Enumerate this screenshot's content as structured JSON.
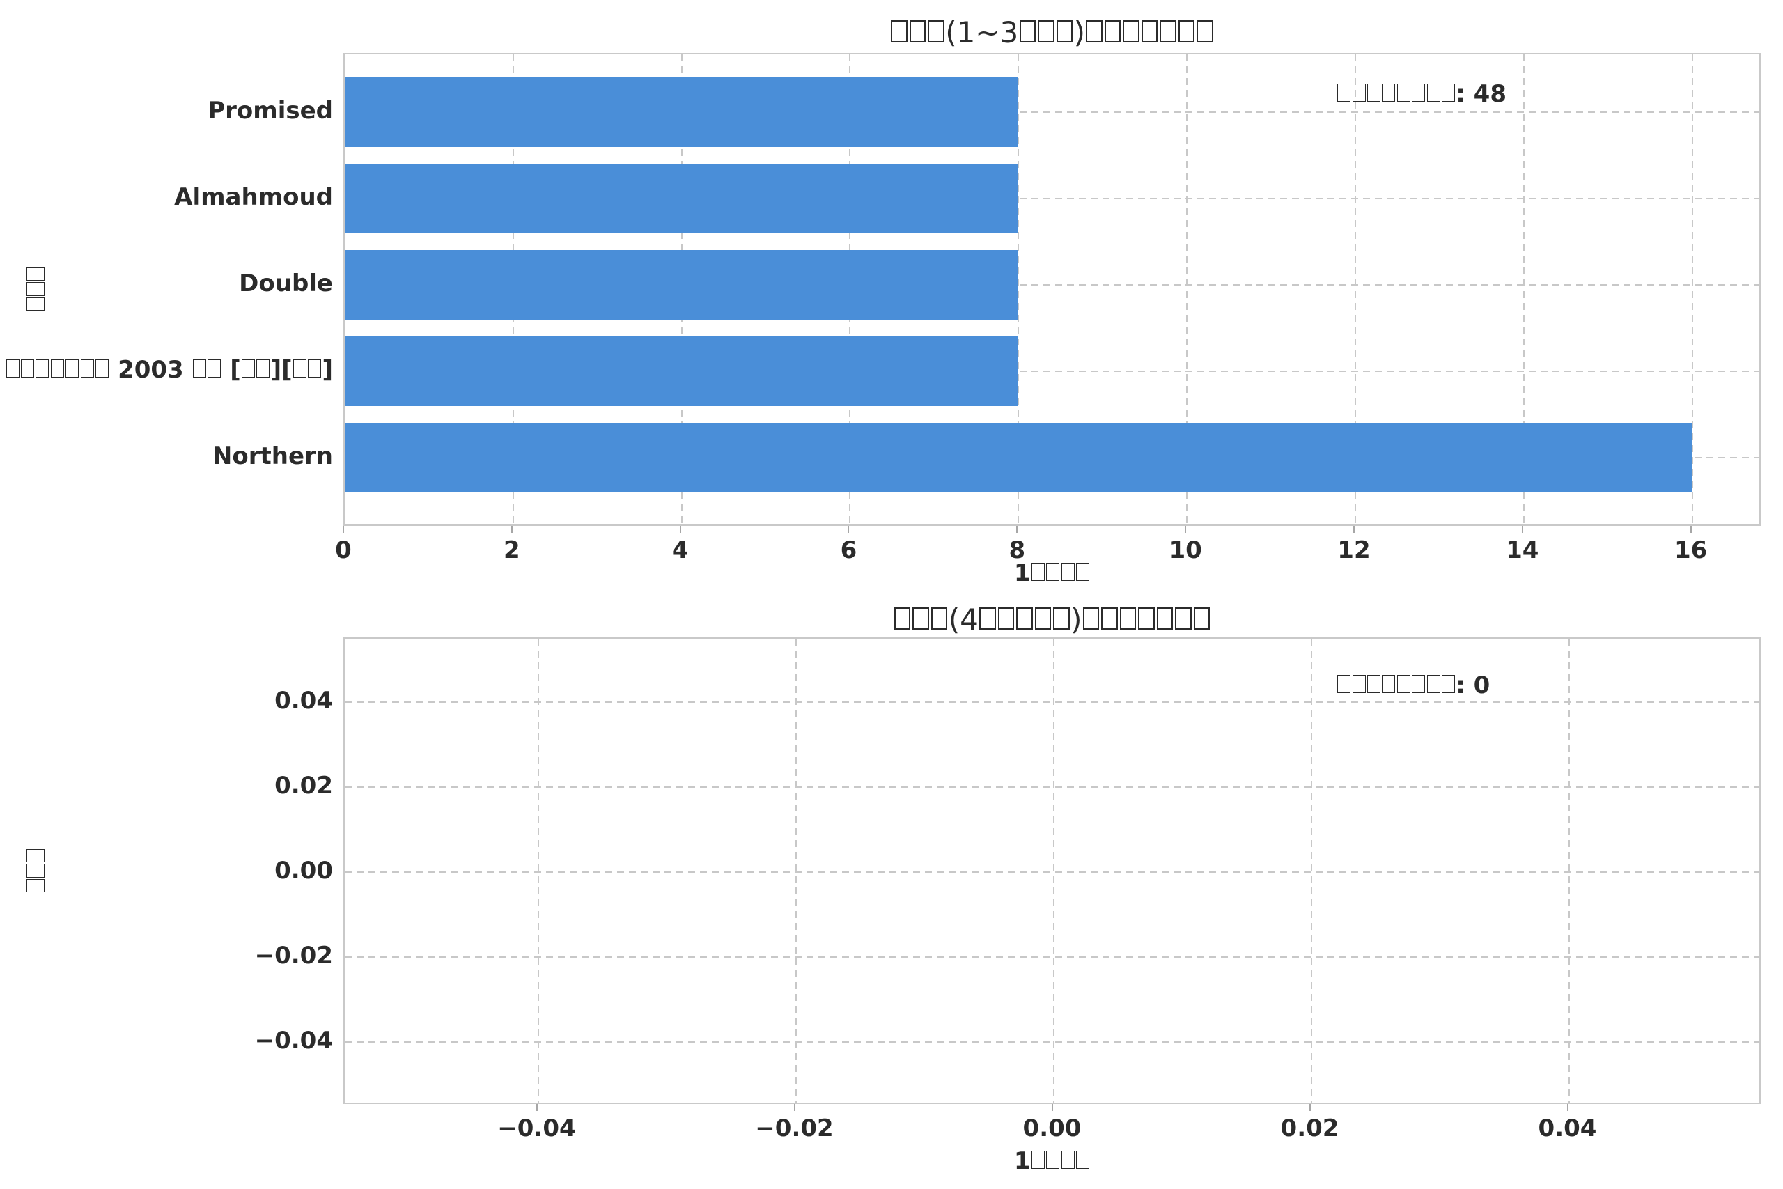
{
  "figure": {
    "background": "#ffffff"
  },
  "colors": {
    "bar": "#4a8ed8",
    "grid": "#c8c8c8",
    "spine": "#c9c9c9",
    "tick": "#a6a6a6",
    "text": "#2b2b2b"
  },
  "chart_data": [
    {
      "type": "bar",
      "orientation": "horizontal",
      "title": "□□□(1~3□□□)□□□□□□□",
      "xlabel": "1□□□□",
      "ylabel": "□□□",
      "categories": [
        "Promised",
        "Almahmoud",
        "Double",
        "□□□□□□□ 2003 □□ [□□][□□]",
        "Northern"
      ],
      "values": [
        8,
        8,
        8,
        8,
        16
      ],
      "xlim": [
        0,
        16.83
      ],
      "xticks": [
        "0",
        "2",
        "4",
        "6",
        "8",
        "10",
        "12",
        "14",
        "16"
      ],
      "annotation": "□□□□□□□□: 48",
      "annotation_value": 48,
      "grid": true,
      "grid_style": "dashed"
    },
    {
      "type": "bar",
      "orientation": "horizontal",
      "title": "□□□(4□□□□□)□□□□□□□",
      "xlabel": "1□□□□",
      "ylabel": "□□□",
      "categories": [],
      "values": [],
      "xlim": [
        -0.055,
        0.055
      ],
      "ylim": [
        -0.055,
        0.055
      ],
      "xticks": [
        "−0.04",
        "−0.02",
        "0.00",
        "0.02",
        "0.04"
      ],
      "yticks": [
        "0.04",
        "0.02",
        "0.00",
        "−0.02",
        "−0.04"
      ],
      "annotation": "□□□□□□□□: 0",
      "annotation_value": 0,
      "grid": true,
      "grid_style": "dashed"
    }
  ]
}
